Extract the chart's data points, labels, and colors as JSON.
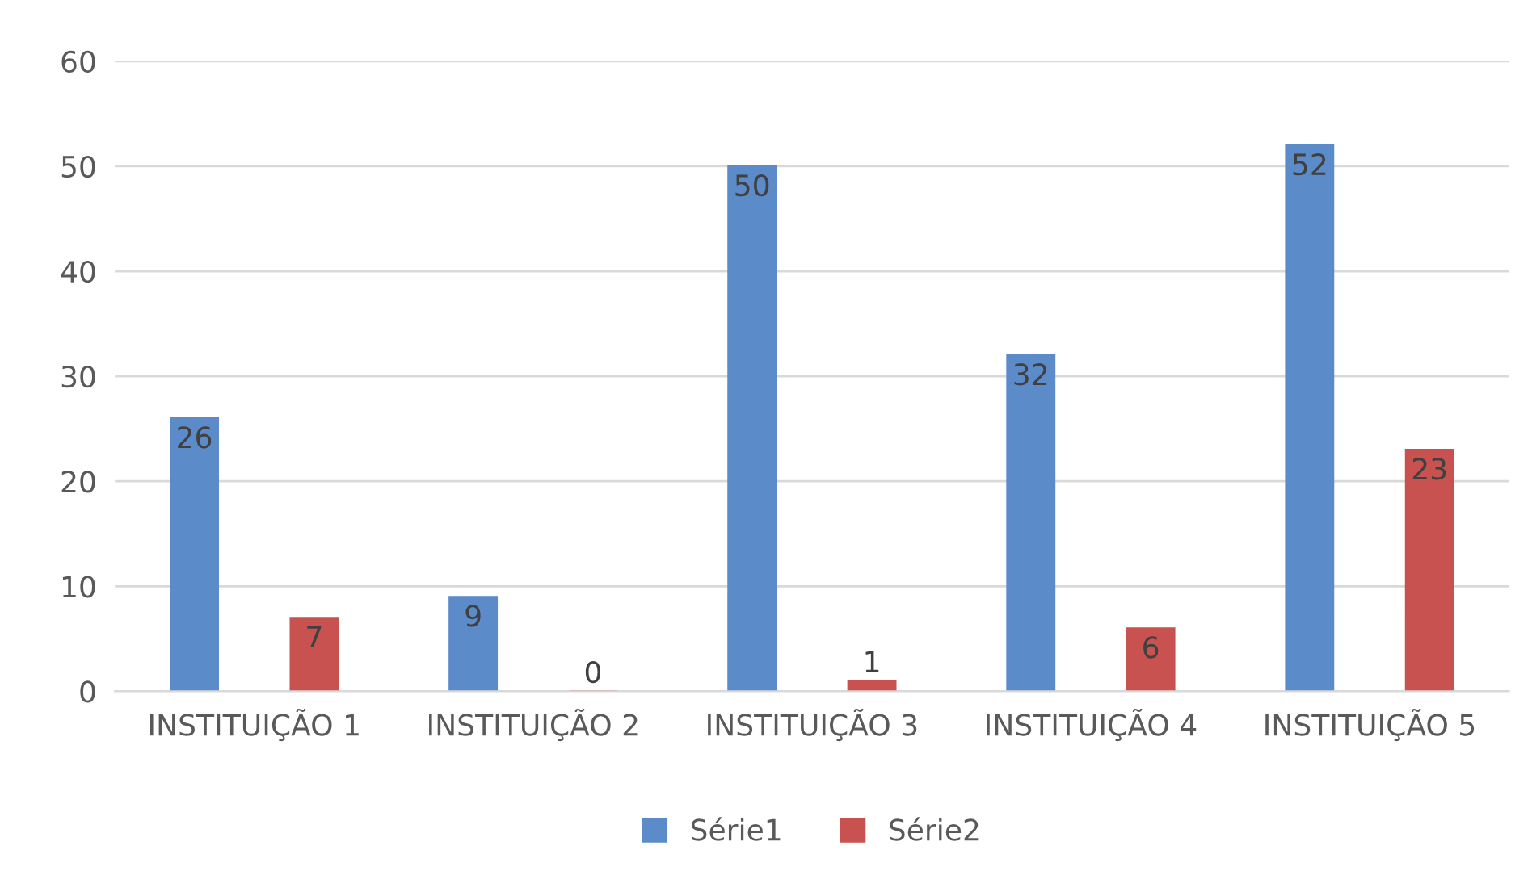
{
  "chart_data": {
    "type": "bar",
    "categories": [
      "INSTITUIÇÃO 1",
      "INSTITUIÇÃO 2",
      "INSTITUIÇÃO 3",
      "INSTITUIÇÃO 4",
      "INSTITUIÇÃO 5"
    ],
    "series": [
      {
        "name": "Série1",
        "color": "#5b8bc8",
        "values": [
          26,
          9,
          50,
          32,
          52
        ]
      },
      {
        "name": "Série2",
        "color": "#c85250",
        "values": [
          7,
          0,
          1,
          6,
          23
        ]
      }
    ],
    "ylim": [
      0,
      60
    ],
    "yticks": [
      0,
      10,
      20,
      30,
      40,
      50,
      60
    ],
    "grid": "y",
    "legend": "bottom",
    "data_labels": true
  }
}
